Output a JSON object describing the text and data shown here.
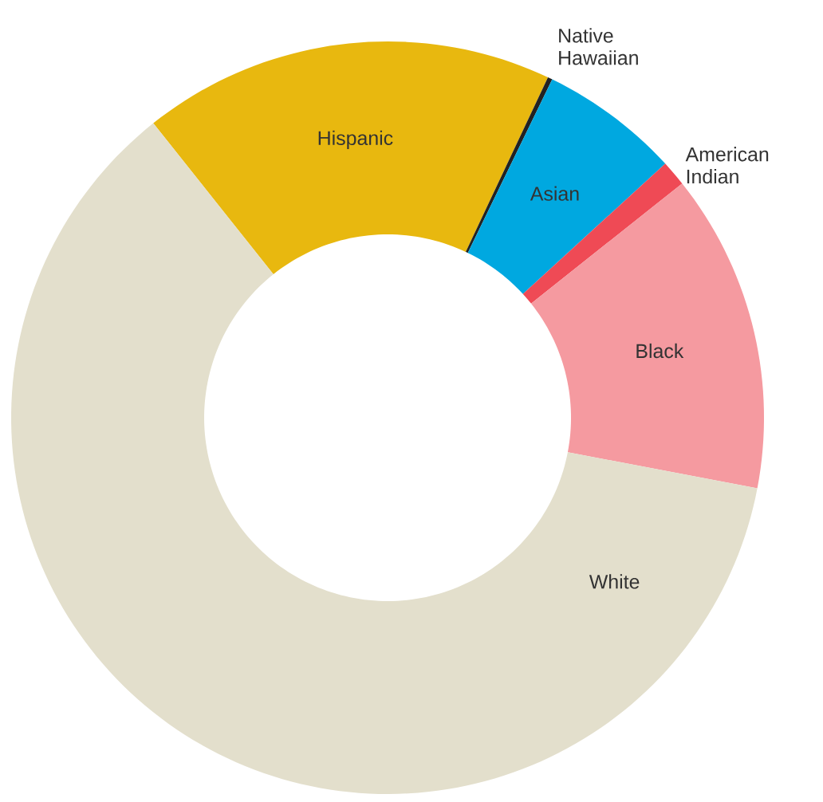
{
  "chart_data": {
    "type": "donut",
    "categories": [
      "Hispanic",
      "Native Hawaiian",
      "Asian",
      "American Indian",
      "Black",
      "White"
    ],
    "values": [
      17.7,
      0.2,
      6.0,
      1.1,
      13.7,
      61.3
    ],
    "colors": [
      "#e8b80f",
      "#222222",
      "#00a8e0",
      "#ef4a55",
      "#f59aa0",
      "#e3dfcc"
    ]
  }
}
